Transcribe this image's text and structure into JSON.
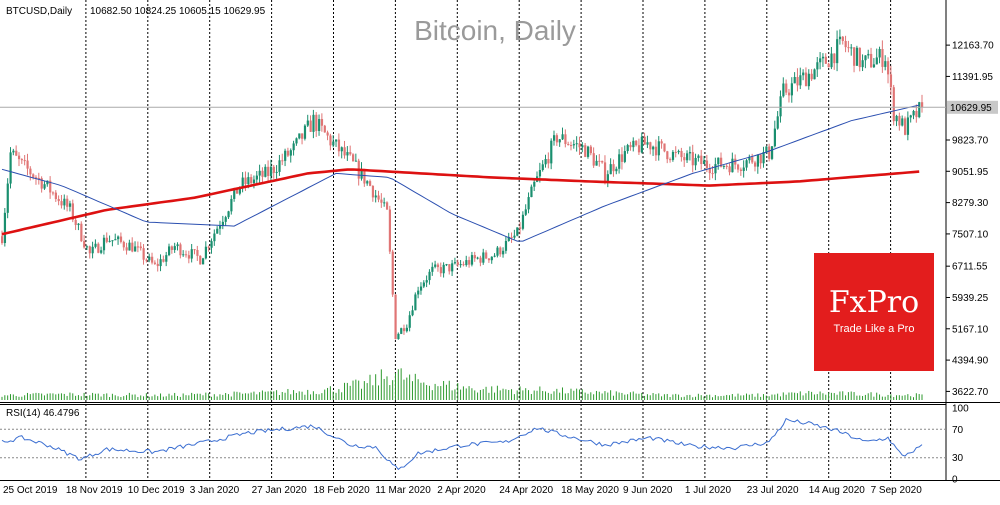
{
  "header": {
    "symbol_info": "BTCUSD,Daily",
    "ohlc": "10682.50 10824.25 10605.15 10629.95",
    "watermark": "Bitcoin, Daily"
  },
  "logo": {
    "brand": "FxPro",
    "tagline": "Trade Like a Pro",
    "background": "#e31d1d"
  },
  "colors": {
    "bull": "#1a8f6f",
    "bear": "#e07575",
    "ma_slow": "#dd1111",
    "ma_fast": "#2b4fb0",
    "rsi": "#3c6fd1",
    "volume": "#2e9a2e",
    "price_tag_bg": "#c8c8c8",
    "grid": "#000000"
  },
  "chart_data": [
    {
      "type": "candlestick",
      "title": "Bitcoin, Daily",
      "symbol": "BTCUSD",
      "timeframe": "Daily",
      "last_price": 10629.95,
      "last_price_label": "10629.95",
      "y_ticks": [
        "12163.70",
        "11391.95",
        "9823.70",
        "9051.95",
        "8279.30",
        "7507.10",
        "6711.55",
        "5939.25",
        "5167.10",
        "4394.90",
        "3622.70"
      ],
      "ylim": [
        3460,
        13030
      ],
      "x_labels": [
        "25 Oct 2019",
        "18 Nov 2019",
        "10 Dec 2019",
        "3 Jan 2020",
        "27 Jan 2020",
        "18 Feb 2020",
        "11 Mar 2020",
        "2 Apr 2020",
        "24 Apr 2020",
        "18 May 2020",
        "9 Jun 2020",
        "1 Jul 2020",
        "23 Jul 2020",
        "14 Aug 2020",
        "7 Sep 2020"
      ],
      "anchors": [
        [
          "2019-10-25",
          7450
        ],
        [
          "2019-10-28",
          9500
        ],
        [
          "2019-11-01",
          9200
        ],
        [
          "2019-11-08",
          8800
        ],
        [
          "2019-11-18",
          8100
        ],
        [
          "2019-11-25",
          7000
        ],
        [
          "2019-12-01",
          7400
        ],
        [
          "2019-12-10",
          7200
        ],
        [
          "2019-12-18",
          6700
        ],
        [
          "2019-12-25",
          7200
        ],
        [
          "2020-01-03",
          6900
        ],
        [
          "2020-01-10",
          7800
        ],
        [
          "2020-01-17",
          8700
        ],
        [
          "2020-01-27",
          9000
        ],
        [
          "2020-02-05",
          9600
        ],
        [
          "2020-02-12",
          10300
        ],
        [
          "2020-02-18",
          9800
        ],
        [
          "2020-02-25",
          9300
        ],
        [
          "2020-03-03",
          8700
        ],
        [
          "2020-03-09",
          8000
        ],
        [
          "2020-03-12",
          5000
        ],
        [
          "2020-03-16",
          5300
        ],
        [
          "2020-03-20",
          6200
        ],
        [
          "2020-03-25",
          6600
        ],
        [
          "2020-04-02",
          6700
        ],
        [
          "2020-04-10",
          6900
        ],
        [
          "2020-04-16",
          7000
        ],
        [
          "2020-04-24",
          7500
        ],
        [
          "2020-04-30",
          8700
        ],
        [
          "2020-05-08",
          9900
        ],
        [
          "2020-05-18",
          9600
        ],
        [
          "2020-05-25",
          9000
        ],
        [
          "2020-06-01",
          9500
        ],
        [
          "2020-06-09",
          9750
        ],
        [
          "2020-06-20",
          9400
        ],
        [
          "2020-07-01",
          9200
        ],
        [
          "2020-07-12",
          9250
        ],
        [
          "2020-07-22",
          9500
        ],
        [
          "2020-07-27",
          11000
        ],
        [
          "2020-08-02",
          11300
        ],
        [
          "2020-08-10",
          11700
        ],
        [
          "2020-08-17",
          12200
        ],
        [
          "2020-08-24",
          11700
        ],
        [
          "2020-09-01",
          11900
        ],
        [
          "2020-09-04",
          10500
        ],
        [
          "2020-09-08",
          10100
        ],
        [
          "2020-09-14",
          10630
        ]
      ],
      "ma_slow": [
        [
          "2019-10-25",
          7500
        ],
        [
          "2019-12-01",
          8100
        ],
        [
          "2020-01-01",
          8400
        ],
        [
          "2020-02-10",
          9000
        ],
        [
          "2020-02-25",
          9100
        ],
        [
          "2020-04-15",
          8900
        ],
        [
          "2020-05-20",
          8800
        ],
        [
          "2020-07-01",
          8700
        ],
        [
          "2020-08-01",
          8800
        ],
        [
          "2020-09-14",
          9050
        ]
      ],
      "ma_fast": [
        [
          "2019-10-25",
          9100
        ],
        [
          "2019-11-15",
          8700
        ],
        [
          "2019-12-15",
          7800
        ],
        [
          "2020-01-15",
          7700
        ],
        [
          "2020-02-20",
          9000
        ],
        [
          "2020-03-10",
          8900
        ],
        [
          "2020-04-01",
          8000
        ],
        [
          "2020-04-25",
          7300
        ],
        [
          "2020-05-25",
          8200
        ],
        [
          "2020-06-25",
          9000
        ],
        [
          "2020-07-20",
          9500
        ],
        [
          "2020-08-20",
          10300
        ],
        [
          "2020-09-14",
          10700
        ]
      ]
    },
    {
      "type": "line",
      "title": "RSI(14) 46.4796",
      "indicator": "RSI",
      "period": 14,
      "value": 46.4796,
      "ylim": [
        0,
        100
      ],
      "levels": [
        70,
        30
      ],
      "y_ticks": [
        "100",
        "70",
        "30",
        "0"
      ],
      "values": [
        [
          "2019-10-25",
          52
        ],
        [
          "2019-11-01",
          58
        ],
        [
          "2019-11-10",
          48
        ],
        [
          "2019-11-22",
          28
        ],
        [
          "2019-12-01",
          42
        ],
        [
          "2019-12-18",
          38
        ],
        [
          "2020-01-05",
          52
        ],
        [
          "2020-01-20",
          65
        ],
        [
          "2020-02-12",
          75
        ],
        [
          "2020-02-25",
          48
        ],
        [
          "2020-03-05",
          45
        ],
        [
          "2020-03-13",
          12
        ],
        [
          "2020-03-20",
          36
        ],
        [
          "2020-04-05",
          48
        ],
        [
          "2020-04-20",
          52
        ],
        [
          "2020-05-01",
          72
        ],
        [
          "2020-05-10",
          62
        ],
        [
          "2020-05-25",
          48
        ],
        [
          "2020-06-10",
          58
        ],
        [
          "2020-06-25",
          46
        ],
        [
          "2020-07-10",
          44
        ],
        [
          "2020-07-22",
          52
        ],
        [
          "2020-07-28",
          83
        ],
        [
          "2020-08-05",
          78
        ],
        [
          "2020-08-15",
          68
        ],
        [
          "2020-08-25",
          52
        ],
        [
          "2020-09-02",
          58
        ],
        [
          "2020-09-07",
          32
        ],
        [
          "2020-09-10",
          38
        ],
        [
          "2020-09-14",
          46
        ]
      ]
    },
    {
      "type": "bar",
      "title": "",
      "indicator": "volume",
      "values": [
        [
          "2019-10-25",
          0.15
        ],
        [
          "2019-11-15",
          0.18
        ],
        [
          "2019-12-20",
          0.15
        ],
        [
          "2020-01-20",
          0.2
        ],
        [
          "2020-02-15",
          0.3
        ],
        [
          "2020-03-01",
          0.5
        ],
        [
          "2020-03-12",
          0.85
        ],
        [
          "2020-03-18",
          0.6
        ],
        [
          "2020-04-10",
          0.35
        ],
        [
          "2020-05-05",
          0.3
        ],
        [
          "2020-06-15",
          0.15
        ],
        [
          "2020-07-20",
          0.15
        ],
        [
          "2020-08-05",
          0.22
        ],
        [
          "2020-09-14",
          0.15
        ]
      ]
    }
  ]
}
